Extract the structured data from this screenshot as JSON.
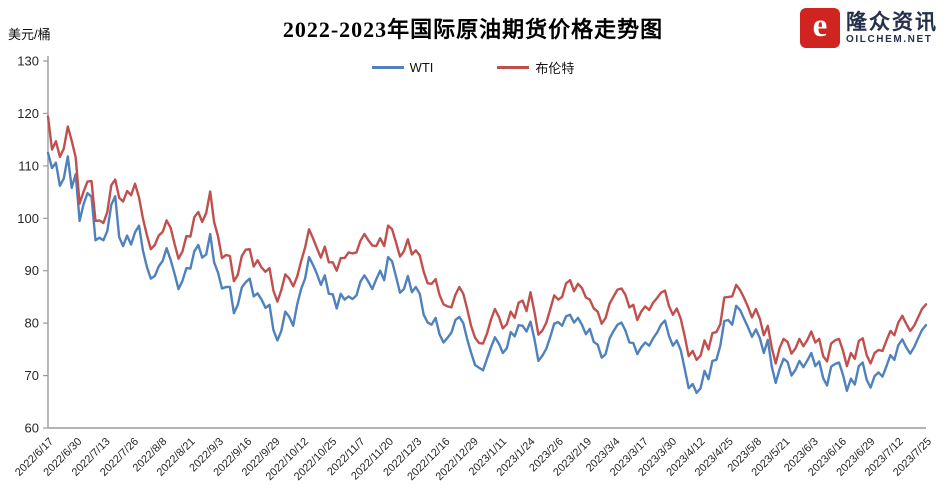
{
  "logo": {
    "name": "隆众资讯",
    "domain": "OILCHEM.NET",
    "mark": "e",
    "mark_color": "#cf2420",
    "text_color": "#232f4b"
  },
  "chart_data": {
    "type": "line",
    "title": "2022-2023年国际原油期货价格走势图",
    "ylabel": "美元/桶",
    "xlabel": "",
    "ylim": [
      60,
      130
    ],
    "yticks": [
      60,
      70,
      80,
      90,
      100,
      110,
      120,
      130
    ],
    "grid": false,
    "legend_position": "top-center",
    "axis_color": "#9b9b9b",
    "categories": [
      "2022/6/17",
      "2022/6/30",
      "2022/7/13",
      "2022/7/26",
      "2022/8/8",
      "2022/8/21",
      "2022/9/3",
      "2022/9/16",
      "2022/9/29",
      "2022/10/12",
      "2022/10/25",
      "2022/11/7",
      "2022/11/20",
      "2022/12/3",
      "2022/12/16",
      "2022/12/29",
      "2023/1/11",
      "2023/1/24",
      "2023/2/6",
      "2023/2/19",
      "2023/3/4",
      "2023/3/17",
      "2023/3/30",
      "2023/4/12",
      "2023/4/25",
      "2023/5/8",
      "2023/5/21",
      "2023/6/3",
      "2023/6/16",
      "2023/6/29",
      "2023/7/12",
      "2023/7/25"
    ],
    "series": [
      {
        "name": "WTI",
        "color": "#4F81BD",
        "values": [
          112.5,
          109.6,
          110.6,
          106.2,
          107.6,
          111.8,
          105.8,
          108.4,
          99.5,
          102.7,
          104.8,
          104.1,
          95.8,
          96.3,
          95.8,
          97.6,
          102.6,
          104.2,
          96.4,
          94.7,
          96.7,
          95.0,
          97.3,
          98.6,
          93.9,
          90.7,
          88.5,
          89.0,
          90.8,
          91.9,
          94.3,
          92.1,
          89.4,
          86.5,
          88.1,
          90.5,
          90.4,
          93.7,
          94.9,
          92.5,
          93.1,
          97.0,
          91.6,
          89.6,
          86.6,
          86.9,
          86.9,
          81.9,
          83.5,
          86.8,
          87.8,
          88.5,
          85.1,
          85.7,
          84.5,
          82.9,
          83.5,
          78.7,
          76.7,
          78.5,
          82.2,
          81.2,
          79.5,
          83.6,
          86.5,
          88.5,
          92.6,
          91.1,
          89.4,
          87.3,
          89.1,
          85.6,
          85.5,
          82.8,
          85.6,
          84.5,
          85.1,
          84.6,
          85.3,
          87.9,
          89.1,
          87.9,
          86.5,
          88.4,
          90.0,
          88.2,
          92.6,
          91.8,
          88.9,
          85.8,
          86.5,
          89.0,
          85.9,
          86.9,
          85.6,
          81.6,
          80.1,
          79.7,
          81.0,
          77.9,
          76.3,
          77.2,
          78.2,
          80.6,
          81.2,
          80.0,
          76.9,
          74.3,
          72.0,
          71.5,
          71.0,
          73.2,
          75.4,
          77.3,
          76.1,
          74.3,
          75.2,
          78.3,
          77.5,
          79.6,
          79.5,
          78.4,
          80.3,
          76.9,
          72.8,
          73.8,
          75.1,
          77.4,
          79.9,
          80.2,
          79.5,
          81.3,
          81.6,
          80.1,
          81.0,
          79.7,
          77.9,
          78.9,
          76.4,
          75.9,
          73.4,
          74.1,
          77.1,
          78.5,
          79.7,
          80.1,
          78.6,
          76.3,
          76.2,
          74.1,
          75.4,
          76.3,
          75.7,
          77.1,
          78.2,
          79.7,
          80.5,
          77.6,
          75.7,
          76.7,
          74.8,
          71.3,
          67.6,
          68.4,
          66.7,
          67.6,
          70.9,
          69.3,
          72.8,
          73.0,
          75.7,
          80.4,
          80.6,
          79.7,
          83.3,
          82.5,
          80.8,
          79.2,
          77.4,
          78.8,
          77.1,
          74.3,
          76.8,
          71.7,
          68.6,
          71.3,
          73.2,
          72.6,
          70.0,
          71.1,
          72.8,
          71.6,
          72.9,
          74.3,
          71.8,
          72.7,
          69.5,
          68.1,
          71.7,
          72.2,
          72.5,
          70.2,
          67.1,
          69.4,
          68.3,
          71.8,
          72.5,
          69.2,
          67.7,
          69.9,
          70.6,
          69.8,
          71.8,
          73.9,
          73.0,
          75.8,
          76.9,
          75.4,
          74.2,
          75.4,
          77.1,
          78.7,
          79.6
        ]
      },
      {
        "name": "布伦特",
        "color": "#C0504D",
        "values": [
          119.4,
          113.1,
          114.7,
          111.7,
          113.3,
          117.5,
          114.8,
          111.6,
          102.8,
          105.1,
          107.0,
          107.1,
          99.5,
          99.6,
          99.1,
          101.2,
          106.3,
          107.4,
          103.9,
          103.2,
          105.2,
          104.4,
          106.6,
          104.0,
          100.0,
          96.8,
          94.1,
          94.9,
          96.7,
          97.4,
          99.6,
          98.2,
          95.1,
          92.3,
          93.7,
          96.6,
          96.5,
          100.2,
          101.2,
          99.3,
          101.0,
          105.1,
          99.3,
          96.5,
          92.4,
          93.0,
          92.8,
          88.0,
          89.2,
          92.8,
          94.0,
          94.1,
          90.8,
          92.0,
          90.6,
          89.8,
          90.5,
          86.2,
          84.1,
          86.3,
          89.3,
          88.5,
          87.0,
          88.9,
          91.8,
          94.4,
          97.9,
          96.2,
          94.3,
          92.5,
          94.6,
          91.6,
          91.6,
          90.0,
          92.4,
          92.4,
          93.5,
          93.3,
          93.5,
          95.7,
          97.0,
          95.8,
          94.8,
          94.7,
          96.2,
          94.7,
          98.6,
          97.9,
          95.4,
          92.7,
          93.7,
          96.0,
          93.1,
          93.9,
          92.9,
          89.8,
          87.6,
          87.5,
          88.4,
          85.4,
          83.6,
          83.2,
          83.0,
          85.4,
          86.9,
          85.6,
          82.7,
          79.4,
          77.2,
          76.2,
          76.1,
          78.0,
          80.7,
          82.7,
          81.2,
          79.0,
          79.8,
          82.2,
          81.0,
          83.9,
          84.3,
          82.3,
          85.9,
          82.1,
          77.8,
          78.6,
          80.1,
          82.7,
          85.3,
          84.5,
          85.0,
          87.6,
          88.2,
          86.1,
          87.5,
          86.7,
          84.9,
          84.5,
          82.8,
          82.2,
          79.9,
          81.0,
          83.7,
          85.1,
          86.4,
          86.6,
          85.4,
          83.0,
          83.5,
          80.6,
          82.2,
          83.2,
          82.5,
          83.9,
          84.8,
          85.8,
          86.2,
          83.3,
          81.6,
          82.8,
          80.8,
          77.5,
          73.7,
          74.7,
          73.0,
          73.8,
          76.7,
          75.0,
          78.1,
          78.3,
          79.8,
          84.9,
          85.0,
          85.1,
          87.3,
          86.3,
          84.8,
          83.1,
          81.1,
          82.7,
          80.8,
          77.7,
          79.5,
          75.3,
          72.3,
          75.3,
          77.0,
          76.4,
          74.2,
          75.2,
          77.0,
          75.6,
          76.8,
          78.4,
          76.3,
          77.0,
          73.7,
          72.7,
          76.1,
          76.7,
          77.0,
          74.8,
          71.8,
          74.3,
          73.2,
          76.6,
          77.1,
          73.9,
          72.3,
          74.3,
          74.9,
          74.7,
          76.7,
          78.5,
          77.7,
          80.1,
          81.4,
          79.9,
          78.5,
          79.5,
          81.1,
          82.7,
          83.6
        ]
      }
    ]
  }
}
